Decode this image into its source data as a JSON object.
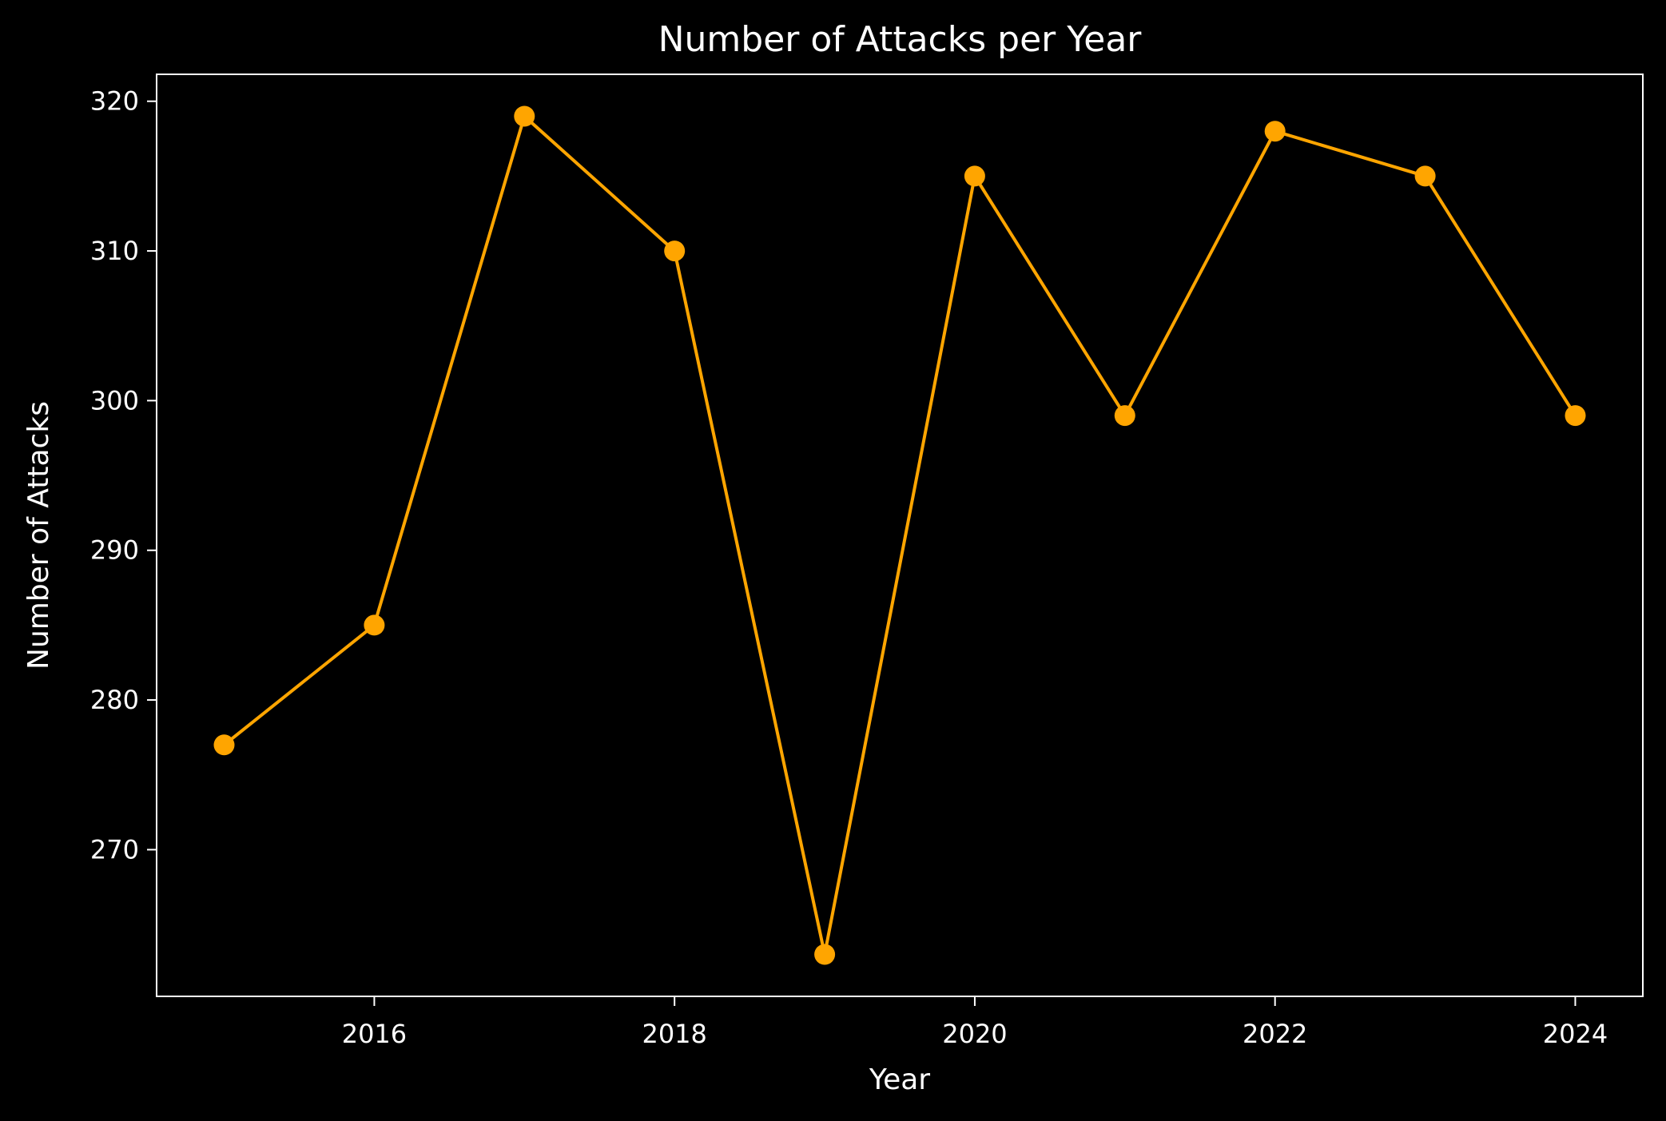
{
  "chart_data": {
    "type": "line",
    "title": "Number of Attacks per Year",
    "xlabel": "Year",
    "ylabel": "Number of Attacks",
    "x": [
      2015,
      2016,
      2017,
      2018,
      2019,
      2020,
      2021,
      2022,
      2023,
      2024
    ],
    "series": [
      {
        "values": [
          277,
          285,
          319,
          310,
          263,
          315,
          299,
          318,
          315,
          299
        ],
        "color": "#ffa500",
        "marker": "circle"
      }
    ],
    "xticks": [
      2016,
      2018,
      2020,
      2022,
      2024
    ],
    "yticks": [
      270,
      280,
      290,
      300,
      310,
      320
    ],
    "xlim": [
      2014.55,
      2024.45
    ],
    "ylim": [
      260.2,
      321.8
    ],
    "grid": false,
    "background_color": "#000000",
    "foreground_color": "#ffffff"
  }
}
